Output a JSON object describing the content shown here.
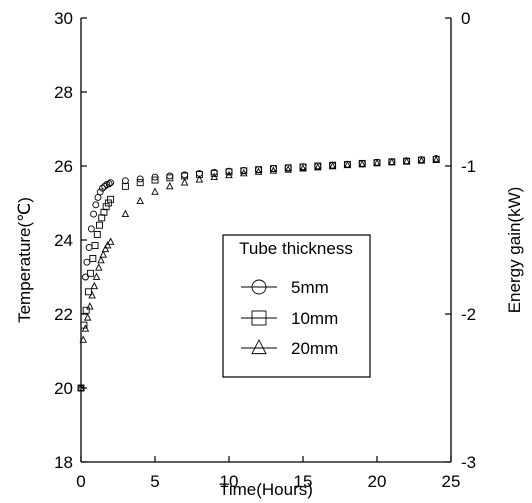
{
  "chart_data": {
    "type": "scatter",
    "xlabel": "Time(Hours)",
    "ylabel": "Temperature(℃)",
    "y2label": "Energy gain(kW)",
    "xlim": [
      0,
      25
    ],
    "ylim": [
      18,
      30
    ],
    "y2lim": [
      -3,
      0
    ],
    "x_ticks": [
      "0",
      "5",
      "10",
      "15",
      "20",
      "25"
    ],
    "y_ticks": [
      "18",
      "20",
      "22",
      "24",
      "26",
      "28",
      "30"
    ],
    "y2_ticks": [
      "-3",
      "-2",
      "-1",
      "0"
    ],
    "grid": false,
    "legend": {
      "title": "Tube thickness",
      "placement": "center",
      "entries": [
        "5mm",
        "10mm",
        "20mm"
      ]
    },
    "series": [
      {
        "name": "5mm",
        "marker": "circle",
        "x": [
          0.0,
          0.3,
          0.4,
          0.55,
          0.7,
          0.85,
          1.0,
          1.15,
          1.3,
          1.45,
          1.6,
          1.75,
          1.9,
          2.0,
          3.0,
          4.0,
          5.0,
          6.0,
          7.0,
          8.0,
          9.0,
          10.0,
          11.0,
          12.0,
          13.0,
          14.0,
          15.0,
          16.0,
          17.0,
          18.0,
          19.0,
          20.0,
          21.0,
          22.0,
          23.0,
          24.0
        ],
        "y": [
          20.0,
          23.0,
          23.4,
          23.8,
          24.3,
          24.7,
          24.95,
          25.15,
          25.3,
          25.4,
          25.45,
          25.5,
          25.52,
          25.55,
          25.6,
          25.65,
          25.7,
          25.73,
          25.76,
          25.8,
          25.83,
          25.86,
          25.88,
          25.9,
          25.93,
          25.95,
          25.98,
          26.0,
          26.02,
          26.05,
          26.07,
          26.1,
          26.12,
          26.14,
          26.17,
          26.2
        ]
      },
      {
        "name": "10mm",
        "marker": "square",
        "x": [
          0.0,
          0.2,
          0.35,
          0.5,
          0.65,
          0.8,
          0.95,
          1.1,
          1.25,
          1.4,
          1.55,
          1.7,
          1.85,
          2.0,
          3.0,
          4.0,
          5.0,
          6.0,
          7.0,
          8.0,
          9.0,
          10.0,
          11.0,
          12.0,
          13.0,
          14.0,
          15.0,
          16.0,
          17.0,
          18.0,
          19.0,
          20.0,
          21.0,
          22.0,
          23.0,
          24.0
        ],
        "y": [
          20.0,
          21.7,
          22.1,
          22.6,
          23.1,
          23.5,
          23.85,
          24.15,
          24.4,
          24.6,
          24.75,
          24.9,
          25.0,
          25.1,
          25.45,
          25.55,
          25.62,
          25.68,
          25.73,
          25.77,
          25.8,
          25.84,
          25.87,
          25.9,
          25.93,
          25.95,
          25.97,
          26.0,
          26.02,
          26.04,
          26.07,
          26.09,
          26.11,
          26.13,
          26.16,
          26.18
        ]
      },
      {
        "name": "20mm",
        "marker": "triangle",
        "x": [
          0.0,
          0.15,
          0.3,
          0.45,
          0.6,
          0.75,
          0.9,
          1.05,
          1.2,
          1.35,
          1.5,
          1.65,
          1.8,
          2.0,
          3.0,
          4.0,
          5.0,
          6.0,
          7.0,
          8.0,
          9.0,
          10.0,
          11.0,
          12.0,
          13.0,
          14.0,
          15.0,
          16.0,
          17.0,
          18.0,
          19.0,
          20.0,
          21.0,
          22.0,
          23.0,
          24.0
        ],
        "y": [
          20.0,
          21.3,
          21.6,
          21.9,
          22.2,
          22.5,
          22.75,
          23.0,
          23.25,
          23.45,
          23.6,
          23.75,
          23.85,
          23.95,
          24.7,
          25.05,
          25.3,
          25.45,
          25.55,
          25.63,
          25.7,
          25.75,
          25.8,
          25.84,
          25.87,
          25.9,
          25.93,
          25.96,
          25.99,
          26.02,
          26.04,
          26.07,
          26.1,
          26.12,
          26.14,
          26.16
        ]
      }
    ]
  }
}
